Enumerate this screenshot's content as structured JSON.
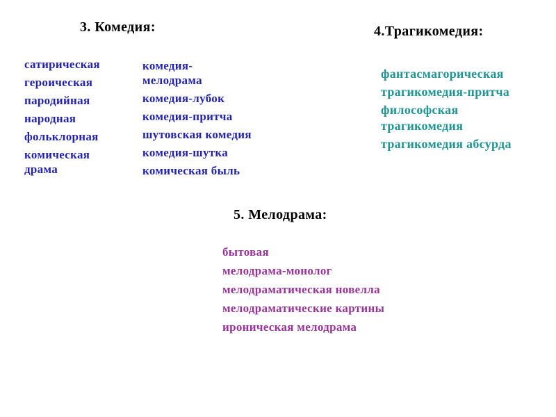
{
  "slide": {
    "colors": {
      "heading": "#000000",
      "comedy": "#2222b2",
      "tragicomedy": "#1f9595",
      "melodrama": "#993399",
      "background": "#ffffff"
    },
    "sections": {
      "comedy": {
        "heading": "3. Комедия:",
        "col1": [
          "сатирическая",
          "героическая",
          "пародийная",
          "народная",
          "фольклорная",
          "комическая\nдрама"
        ],
        "col2": [
          "комедия-\nмелодрама",
          "комедия-лубок",
          "комедия-притча",
          "шутовская комедия",
          "комедия-шутка",
          "комическая быль"
        ]
      },
      "tragicomedy": {
        "heading": "4.Трагикомедия:",
        "items": [
          "фантасмагорическая",
          "трагикомедия-притча",
          "философская\nтрагикомедия",
          "трагикомедия абсурда"
        ]
      },
      "melodrama": {
        "heading": "5. Мелодрама:",
        "items": [
          "бытовая",
          "мелодрама-монолог",
          "мелодраматическая новелла",
          "мелодраматические картины",
          "ироническая мелодрама"
        ]
      }
    }
  }
}
